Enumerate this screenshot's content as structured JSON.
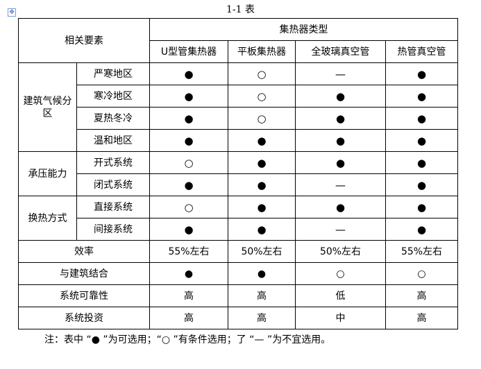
{
  "title": "1-1 表",
  "header": {
    "factors": "相关要素",
    "types": "集热器类型",
    "columns": [
      "U型管集热器",
      "平板集热器",
      "全玻璃真空管",
      "热管真空管"
    ]
  },
  "groups": [
    {
      "label": "建筑气候分区",
      "rows": [
        {
          "label": "严寒地区",
          "values": [
            "●",
            "○",
            "—",
            "●"
          ]
        },
        {
          "label": "寒冷地区",
          "values": [
            "●",
            "○",
            "●",
            "●"
          ]
        },
        {
          "label": "夏热冬冷",
          "values": [
            "●",
            "○",
            "●",
            "●"
          ]
        },
        {
          "label": "温和地区",
          "values": [
            "●",
            "●",
            "●",
            "●"
          ]
        }
      ]
    },
    {
      "label": "承压能力",
      "rows": [
        {
          "label": "开式系统",
          "values": [
            "○",
            "●",
            "●",
            "●"
          ]
        },
        {
          "label": "闭式系统",
          "values": [
            "●",
            "●",
            "—",
            "●"
          ]
        }
      ]
    },
    {
      "label": "换热方式",
      "rows": [
        {
          "label": "直接系统",
          "values": [
            "○",
            "●",
            "●",
            "●"
          ]
        },
        {
          "label": "间接系统",
          "values": [
            "●",
            "●",
            "—",
            "●"
          ]
        }
      ]
    }
  ],
  "single_rows": [
    {
      "label": "效率",
      "values": [
        "55%左右",
        "50%左右",
        "50%左右",
        "55%左右"
      ]
    },
    {
      "label": "与建筑结合",
      "values": [
        "●",
        "●",
        "○",
        "○"
      ]
    },
    {
      "label": "系统可靠性",
      "values": [
        "高",
        "高",
        "低",
        "高"
      ]
    },
    {
      "label": "系统投资",
      "values": [
        "高",
        "高",
        "中",
        "高"
      ]
    }
  ],
  "note": "注：表中 “● ”为可选用；“○ ”有条件选用；了 “— ”为不宜选用。"
}
